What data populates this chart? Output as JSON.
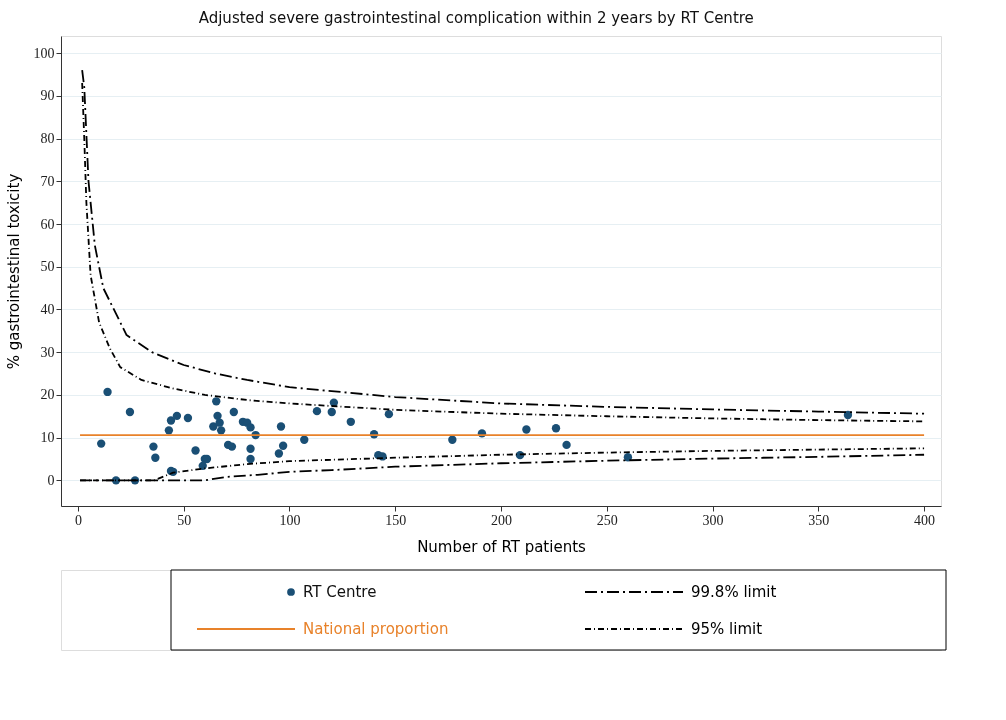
{
  "chart_data": {
    "type": "scatter",
    "title": "Adjusted severe gastrointestinal complication within 2 years by RT Centre",
    "xlabel": "Number of RT patients",
    "ylabel": "% gastrointestinal toxicity",
    "xlim": [
      -8,
      408
    ],
    "xticks": [
      0,
      50,
      100,
      150,
      200,
      250,
      300,
      350,
      400
    ],
    "ylim": [
      -6,
      104
    ],
    "yticks": [
      0,
      10,
      20,
      30,
      40,
      50,
      60,
      70,
      80,
      90,
      100
    ],
    "grid": "y",
    "legend": "bottom",
    "series": [
      {
        "name": "RT Centre",
        "marker": "circle",
        "color": "#1a4f75",
        "x": [
          11,
          14,
          18,
          24.6,
          27,
          35.7,
          36.6,
          43,
          44,
          44,
          45,
          46.8,
          52,
          55.6,
          59,
          60,
          61,
          64,
          65.4,
          66,
          67,
          67.7,
          71,
          72.8,
          73.7,
          78,
          80,
          81.6,
          81.6,
          81.6,
          84,
          95,
          96,
          97,
          107,
          113,
          120,
          121,
          129,
          140,
          142,
          144,
          147,
          177,
          191,
          209,
          212,
          226,
          231,
          260,
          364
        ],
        "values": [
          8.6,
          20.7,
          0,
          16,
          0,
          7.9,
          5.3,
          11.7,
          14,
          2.2,
          2,
          15.1,
          14.6,
          7,
          3.4,
          5,
          5,
          12.6,
          18.5,
          15.1,
          13.5,
          11.7,
          8.3,
          7.9,
          16,
          13.7,
          13.5,
          12.4,
          7.4,
          5,
          10.6,
          6.3,
          12.6,
          8.1,
          9.5,
          16.2,
          16,
          18.2,
          13.7,
          10.8,
          5.9,
          5.6,
          15.5,
          9.5,
          11,
          5.9,
          11.9,
          12.2,
          8.3,
          5.4,
          15.3
        ]
      },
      {
        "name": "National proportion",
        "type": "line",
        "line_style": "solid",
        "color": "#e8822a",
        "x": [
          1,
          400
        ],
        "values": [
          10.6,
          10.6
        ]
      },
      {
        "name": "99.8% limit",
        "type": "line",
        "line_style": "dashed",
        "color": "#000000",
        "x": [
          2,
          3,
          5,
          8,
          12,
          17,
          23,
          35,
          50,
          65,
          80,
          100,
          150,
          200,
          250,
          300,
          350,
          400
        ],
        "values": [
          96,
          92,
          70,
          55,
          45,
          40,
          34,
          30,
          27,
          25,
          23.5,
          21.8,
          19.5,
          18,
          17.2,
          16.6,
          16.1,
          15.6
        ]
      },
      {
        "type": "line",
        "line_style": "dashed",
        "color": "#000000",
        "x": [
          1,
          60,
          70,
          85,
          100,
          120,
          150,
          200,
          250,
          300,
          350,
          400
        ],
        "values": [
          0,
          0,
          0.8,
          1.3,
          2,
          2.4,
          3.2,
          4,
          4.6,
          5.1,
          5.5,
          6
        ]
      },
      {
        "name": "95% limit",
        "type": "line",
        "line_style": "dotted",
        "color": "#000000",
        "x": [
          2,
          3,
          4,
          6,
          10,
          15,
          20,
          30,
          45,
          60,
          80,
          100,
          150,
          200,
          250,
          300,
          350,
          400
        ],
        "values": [
          93,
          80,
          65,
          48,
          37,
          31,
          26.5,
          23.5,
          21.5,
          20,
          18.8,
          18,
          16.5,
          15.6,
          15,
          14.5,
          14.1,
          13.8
        ]
      },
      {
        "type": "line",
        "line_style": "dotted",
        "color": "#000000",
        "x": [
          1,
          36,
          45,
          60,
          70,
          80,
          100,
          150,
          200,
          250,
          300,
          350,
          400
        ],
        "values": [
          0,
          0,
          1.8,
          2.8,
          3.3,
          3.8,
          4.5,
          5.3,
          6,
          6.5,
          6.9,
          7.2,
          7.5
        ]
      }
    ]
  }
}
